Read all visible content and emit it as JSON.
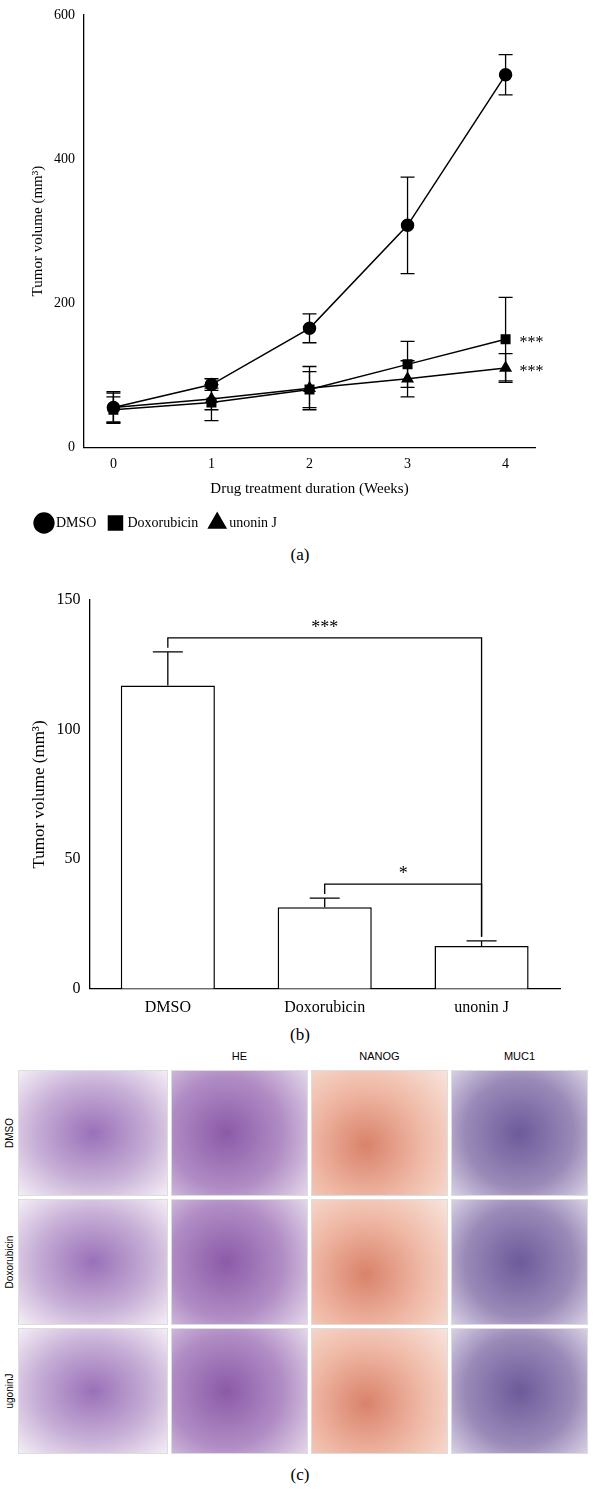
{
  "chart_data": [
    {
      "type": "line",
      "caption": "(a)",
      "x_label": "Drug treatment duration (Weeks)",
      "y_label": "Tumor volume (mm³)",
      "x": [
        0,
        1,
        2,
        3,
        4
      ],
      "xlim": [
        -0.3,
        4.3
      ],
      "xticks": [
        0,
        1,
        2,
        3,
        4
      ],
      "ylim": [
        0,
        600
      ],
      "yticks": [
        0,
        200,
        400,
        600
      ],
      "grid": false,
      "legend": "bottom-left",
      "series": [
        {
          "name": "DMSO",
          "color": "#000000",
          "marker": "circle",
          "values": [
            55,
            87,
            165,
            308,
            517
          ],
          "errors": [
            20,
            8,
            20,
            67,
            28
          ]
        },
        {
          "name": "Doxorubicin",
          "color": "#000000",
          "marker": "square",
          "values": [
            52,
            62,
            80,
            115,
            150
          ],
          "errors": [
            18,
            25,
            25,
            32,
            58
          ]
        },
        {
          "name": "unonin J",
          "color": "#000000",
          "marker": "triangle",
          "values": [
            55,
            67,
            82,
            95,
            110
          ],
          "errors": [
            22,
            15,
            30,
            25,
            20
          ]
        }
      ],
      "annotations": [
        {
          "text": "***",
          "series": "Doxorubicin"
        },
        {
          "text": "***",
          "series": "unonin J"
        }
      ]
    },
    {
      "type": "bar",
      "caption": "(b)",
      "y_label": "Tumor volume (mm³)",
      "categories": [
        "DMSO",
        "Doxorubicin",
        "unonin J"
      ],
      "values": [
        117,
        31.5,
        16.5
      ],
      "errors": [
        13,
        3.5,
        2
      ],
      "color": "#ffffff",
      "ylim": [
        0,
        150
      ],
      "yticks": [
        0,
        50,
        100,
        150
      ],
      "grid": false,
      "comparisons": [
        {
          "from": "DMSO",
          "to": "unonin J",
          "label": "***"
        },
        {
          "from": "Doxorubicin",
          "to": "unonin J",
          "label": "*"
        }
      ]
    }
  ],
  "panel_c": {
    "caption": "(c)",
    "columns": [
      "HE",
      "NANOG",
      "MUC1"
    ],
    "rows": [
      "DMSO",
      "Doxorubicin",
      "ugoninJ"
    ]
  }
}
